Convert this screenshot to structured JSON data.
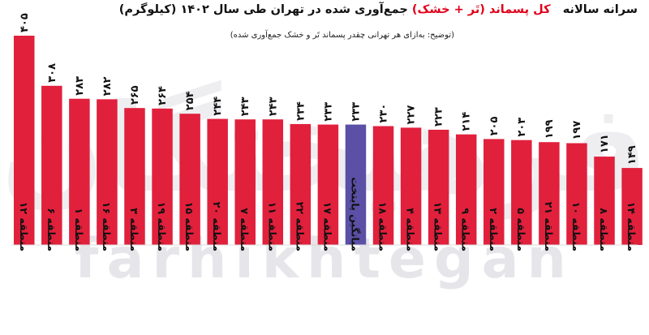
{
  "header": {
    "title_prefix": "سرانه سالانه",
    "title_highlight": "کل پسماند (تَر + خشک)",
    "title_suffix": "جمع‌آوری شده در تهران طی سال ۱۴۰۲ (کیلوگرم)",
    "subtitle": "(توضیح: به‌ازای هر تهرانی چقدر پسماند تَر و خشک جمع‌آوری شده)"
  },
  "watermark": {
    "latin": "farhikhtegan",
    "persian": "فرهیختگان"
  },
  "colors": {
    "bar": "#e1203c",
    "highlight_bar": "#5a50a6",
    "accent": "#e1001a",
    "watermark": "#e9e9ec"
  },
  "chart_data": {
    "type": "bar",
    "title": "سرانه سالانه کل پسماند (تَر + خشک) جمع‌آوری شده در تهران طی سال ۱۴۰۲ (کیلوگرم)",
    "xlabel": "",
    "ylabel": "",
    "ylim": [
      0,
      405
    ],
    "grid": false,
    "highlight_category": "میانگین پایتخت",
    "categories": [
      "منطقه ۱۲",
      "منطقه ۶",
      "منطقه ۱",
      "منطقه ۱۶",
      "منطقه ۳",
      "منطقه ۱۹",
      "منطقه ۱۵",
      "منطقه ۲۰",
      "منطقه ۷",
      "منطقه ۱۱",
      "منطقه ۲۲",
      "منطقه ۱۷",
      "میانگین پایتخت",
      "منطقه ۱۸",
      "منطقه ۴",
      "منطقه ۱۳",
      "منطقه ۹",
      "منطقه ۲",
      "منطقه ۵",
      "منطقه ۲۱",
      "منطقه ۱۰",
      "منطقه ۸",
      "منطقه ۱۴"
    ],
    "values": [
      405,
      308,
      283,
      282,
      265,
      264,
      254,
      244,
      243,
      243,
      234,
      233,
      233,
      230,
      227,
      223,
      214,
      205,
      203,
      199,
      197,
      171,
      149
    ],
    "value_labels": [
      "۴۰۵",
      "۳۰۸",
      "۲۸۳",
      "۲۸۲",
      "۲۶۵",
      "۲۶۴",
      "۲۵۴",
      "۲۴۴",
      "۲۴۳",
      "۲۴۳",
      "۲۳۴",
      "۲۳۳",
      "۲۳۳",
      "۲۳۰",
      "۲۲۷",
      "۲۲۳",
      "۲۱۴",
      "۲۰۵",
      "۲۰۳",
      "۱۹۹",
      "۱۹۷",
      "۱۷۱",
      "۱۴۹"
    ]
  }
}
